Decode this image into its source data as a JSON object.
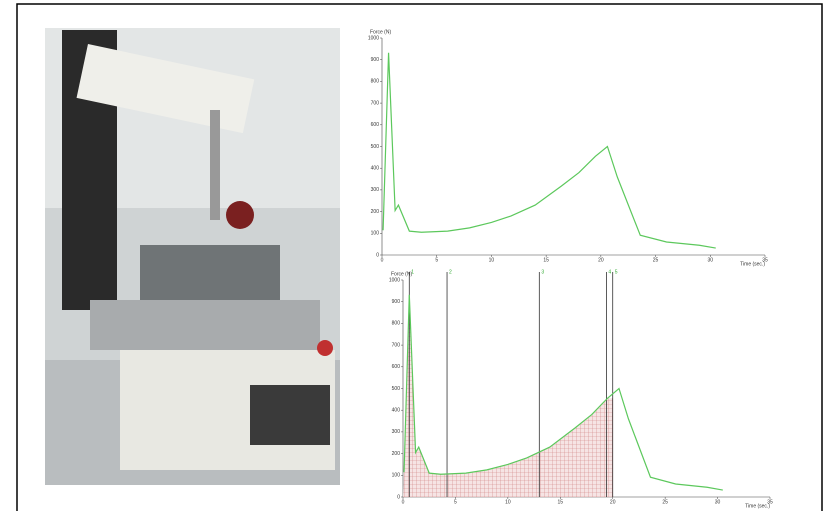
{
  "chart_data": [
    {
      "type": "line",
      "y_label": "Force (N)",
      "x_label": "Time (sec.)",
      "color": "#5cc85c",
      "x": [
        0.1,
        0.6,
        1.2,
        1.5,
        2.5,
        3.6,
        6,
        8,
        10,
        11.8,
        14,
        16.4,
        18,
        19.5,
        20.6,
        21.5,
        23.6,
        26,
        29,
        30.5
      ],
      "values": [
        114,
        932,
        205,
        230,
        110,
        105,
        110,
        125,
        150,
        180,
        230,
        318,
        380,
        455,
        500,
        360,
        91,
        60,
        45,
        32
      ],
      "xlim": [
        0,
        35
      ],
      "xticks": [
        0,
        5,
        10,
        15,
        20,
        25,
        30,
        35
      ],
      "ylim": [
        0,
        1000
      ],
      "yticks": [
        0,
        100,
        200,
        300,
        400,
        500,
        600,
        700,
        800,
        900,
        1000
      ]
    },
    {
      "type": "line",
      "y_label": "Force (N)",
      "x_label": "Time (sec.)",
      "color": "#5cc85c",
      "x": [
        0.1,
        0.6,
        1.2,
        1.5,
        2.5,
        3.6,
        6,
        8,
        10,
        11.8,
        14,
        16.4,
        18,
        19.5,
        20.6,
        21.5,
        23.6,
        26,
        29,
        30.5
      ],
      "values": [
        114,
        932,
        205,
        230,
        110,
        105,
        110,
        125,
        150,
        180,
        230,
        318,
        380,
        455,
        500,
        360,
        91,
        60,
        45,
        32
      ],
      "xlim": [
        0,
        35
      ],
      "xticks": [
        0,
        5,
        10,
        15,
        20,
        25,
        30,
        35
      ],
      "ylim": [
        0,
        1000
      ],
      "yticks": [
        0,
        100,
        200,
        300,
        400,
        500,
        600,
        700,
        800,
        900,
        1000
      ],
      "markers": [
        0.6,
        4.2,
        13.0,
        19.4,
        20.0
      ],
      "marker_labels": [
        "1",
        "2",
        "3",
        "4",
        "5"
      ]
    }
  ]
}
